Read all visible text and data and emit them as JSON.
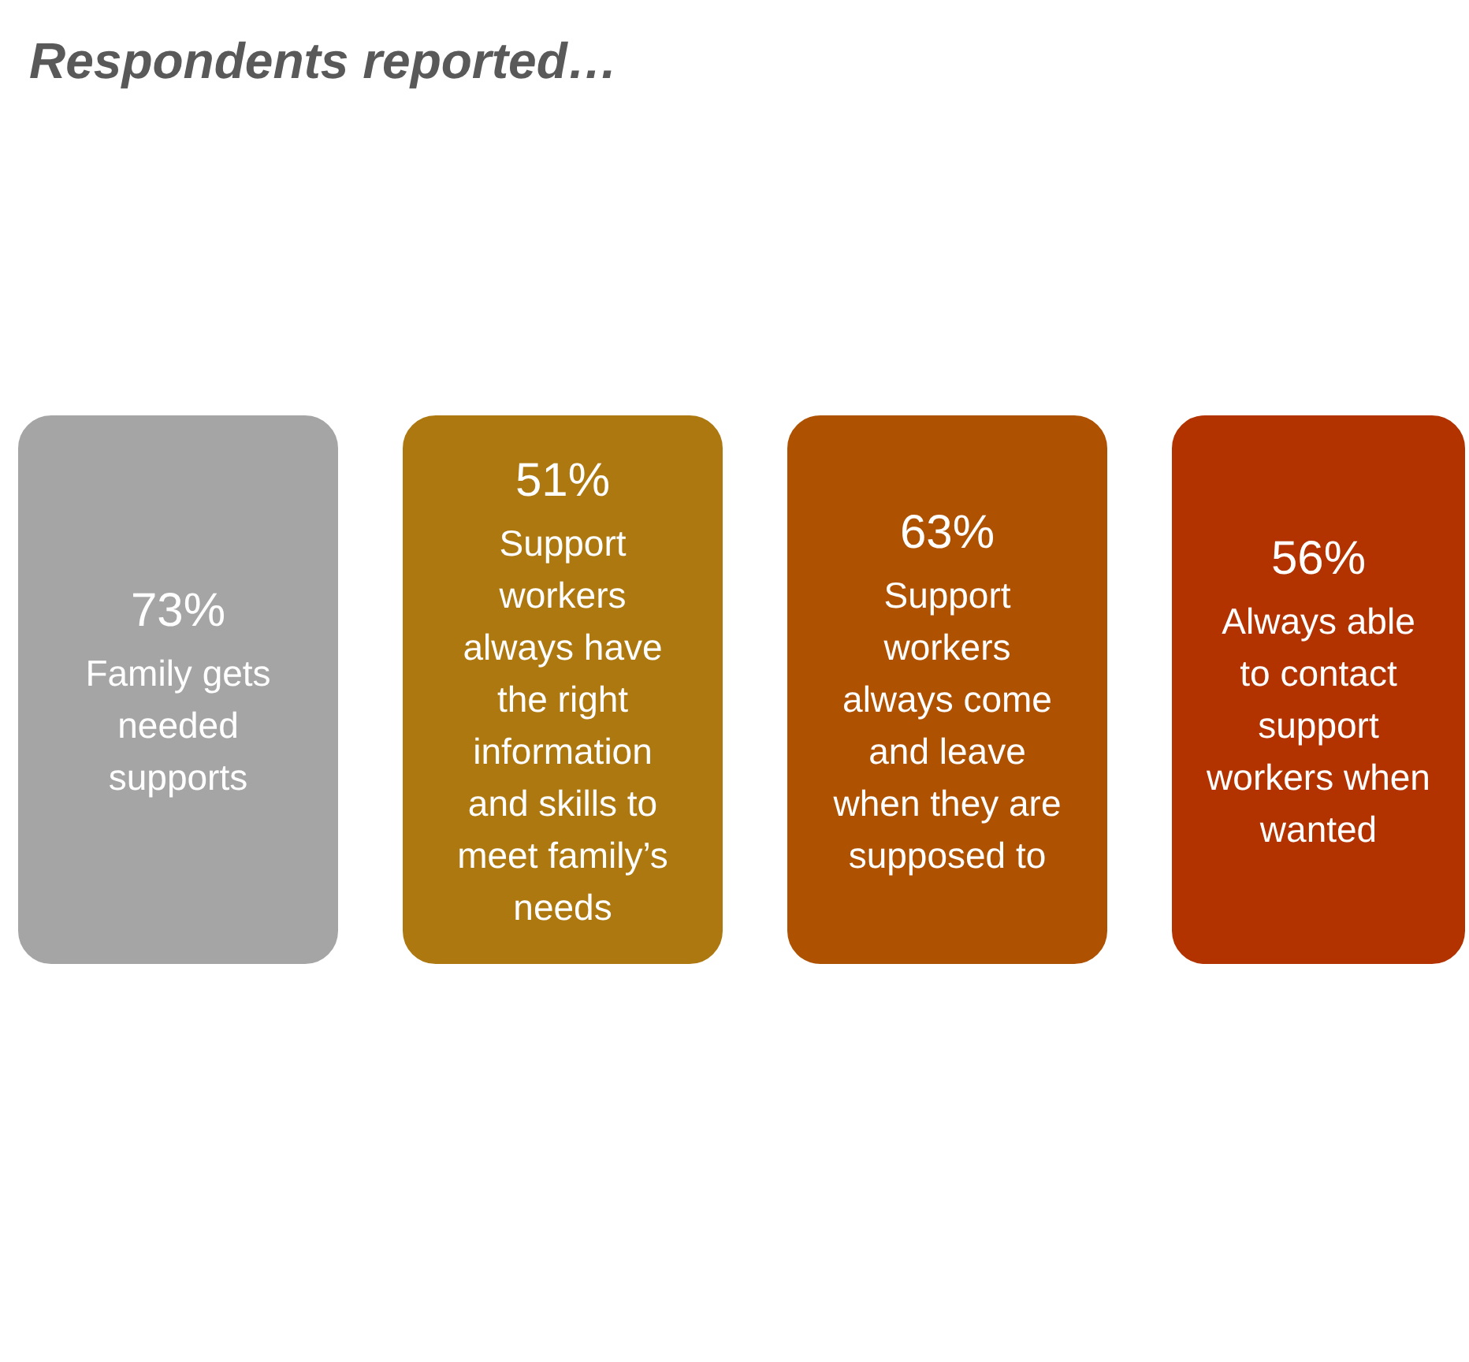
{
  "chart_data": {
    "type": "other",
    "title": "Respondents reported…",
    "categories": [
      "Family gets needed supports",
      "Support workers always have the right information and skills to meet family’s needs",
      "Support workers always come and leave when they are supposed to",
      "Always able to contact support workers when wanted"
    ],
    "values": [
      73,
      51,
      63,
      56
    ],
    "value_labels": [
      "73%",
      "51%",
      "63%",
      "56%"
    ],
    "colors": [
      "#a5a5a5",
      "#ac780f",
      "#ae5100",
      "#b23300"
    ]
  }
}
